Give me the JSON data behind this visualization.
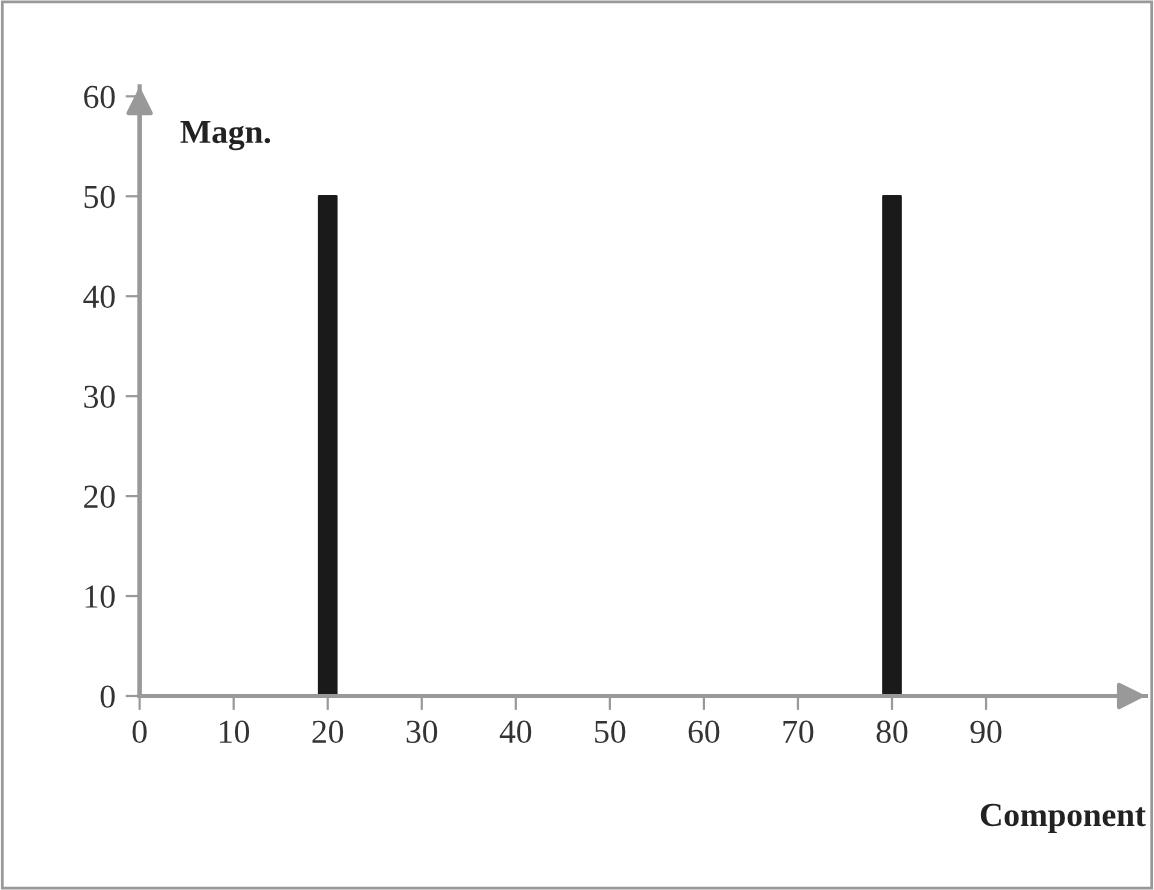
{
  "chart_data": {
    "type": "bar",
    "xlabel": "Component",
    "ylabel": "Magn.",
    "x": [
      20,
      80
    ],
    "values": [
      50,
      50
    ],
    "color": "#1a1a1a",
    "xlim": [
      0,
      107
    ],
    "xticks": [
      0,
      10,
      20,
      30,
      40,
      50,
      60,
      70,
      80,
      90
    ],
    "ylim": [
      0,
      61
    ],
    "yticks": [
      0,
      10,
      20,
      30,
      40,
      50,
      60
    ],
    "grid": false,
    "legend": false
  }
}
